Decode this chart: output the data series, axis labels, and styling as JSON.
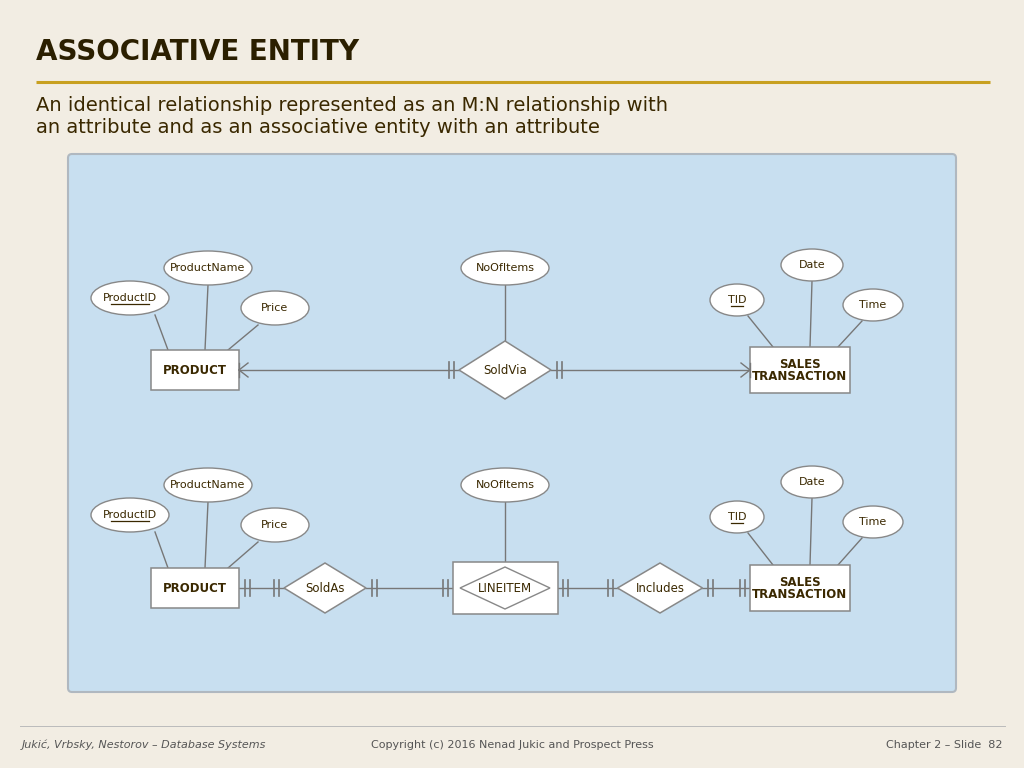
{
  "title": "ASSOCIATIVE ENTITY",
  "subtitle_line1": "An identical relationship represented as an M:N relationship with",
  "subtitle_line2": "an attribute and as an associative entity with an attribute",
  "bg_color": "#F2EDE3",
  "diagram_bg": "#C8DFF0",
  "title_color": "#2B1F00",
  "gold_line_color": "#C8A020",
  "footer_left": "Jukić, Vrbsky, Nestorov – Database Systems",
  "footer_center": "Copyright (c) 2016 Nenad Jukic and Prospect Press",
  "footer_right": "Chapter 2 – Slide  82",
  "entity_fill": "#FFFFFF",
  "entity_edge": "#888888",
  "ellipse_fill": "#FFFFFF",
  "ellipse_edge": "#888888",
  "diamond_fill": "#FFFFFF",
  "diamond_edge": "#888888",
  "line_color": "#777777",
  "text_color": "#3A2800"
}
